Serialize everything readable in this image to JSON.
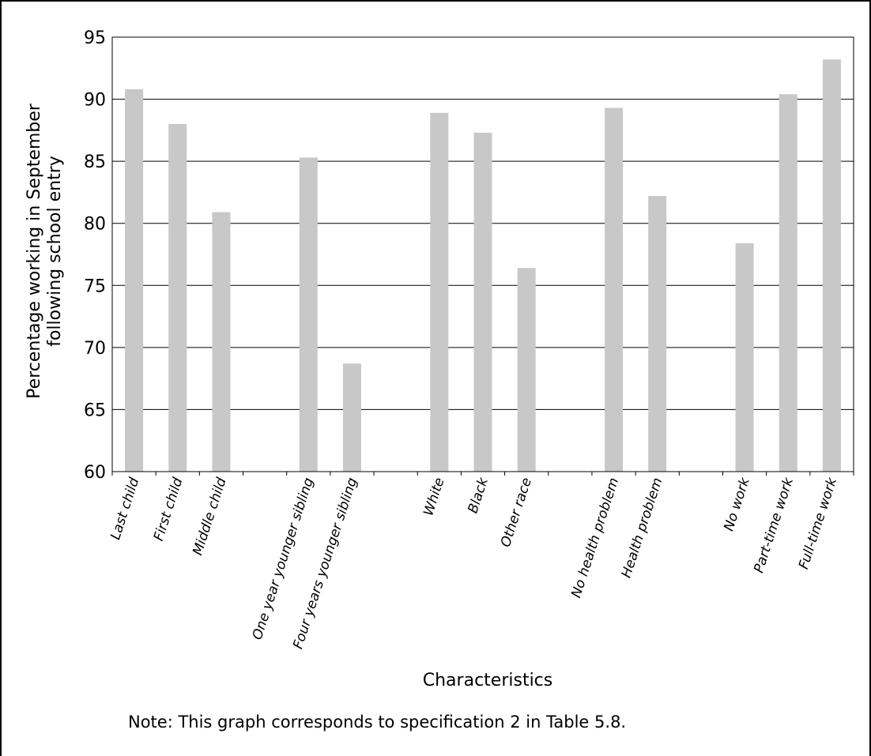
{
  "chart_data": {
    "type": "bar",
    "categories": [
      "Last child",
      "First child",
      "Middle child",
      "",
      "One year younger sibling",
      "Four years younger sibling",
      "",
      "White",
      "Black",
      "Other race",
      "",
      "No health problem",
      "Health problem",
      "",
      "No work",
      "Part-time work",
      "Full-time work"
    ],
    "values": [
      90.8,
      88.0,
      80.9,
      null,
      85.3,
      68.7,
      null,
      88.9,
      87.3,
      76.4,
      null,
      89.3,
      82.2,
      null,
      78.4,
      90.4,
      93.2
    ],
    "ylim": [
      60,
      95
    ],
    "yticks": [
      60,
      65,
      70,
      75,
      80,
      85,
      90,
      95
    ],
    "ylabel_lines": [
      "Percentage working in September",
      "following school entry"
    ],
    "xlabel": "Characteristics",
    "grid": true,
    "bar_color": "#c8c8c8",
    "note": "Note: This graph corresponds to specification 2 in Table 5.8."
  }
}
